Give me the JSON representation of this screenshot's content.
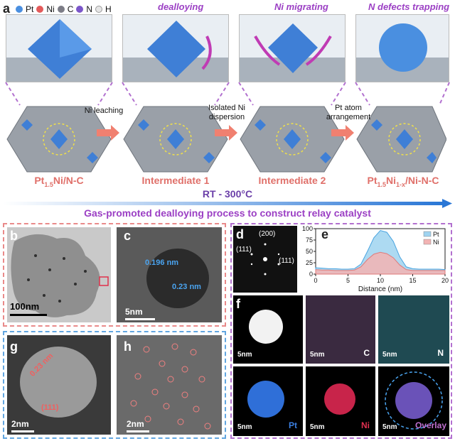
{
  "panel_a": {
    "letter": "a",
    "legend": [
      {
        "label": "Pt",
        "color": "#4a8fe0"
      },
      {
        "label": "Ni",
        "color": "#e35a5a"
      },
      {
        "label": "C",
        "color": "#7c7c86"
      },
      {
        "label": "N",
        "color": "#7b56c9"
      },
      {
        "label": "H",
        "color": "#e6e6e6"
      }
    ],
    "stage_titles": [
      "dealloying",
      "Ni migrating",
      "N defects trapping"
    ],
    "steps": [
      {
        "label_main": "Pt",
        "label_sub": "1.5",
        "label_rest": "Ni/N-C"
      },
      {
        "label_main": "Intermediate 1",
        "label_sub": "",
        "label_rest": ""
      },
      {
        "label_main": "Intermediate 2",
        "label_sub": "",
        "label_rest": ""
      },
      {
        "label_main": "Pt",
        "label_sub": "1.5",
        "label_rest": "Ni",
        "label_sub2": "1-x",
        "label_rest2": "/Ni-N-C"
      }
    ],
    "arrows": [
      "Ni leaching",
      "Isolated Ni\ndispersion",
      "Pt atom\narrangement"
    ],
    "timeline_label": "RT - 300°C",
    "caption": "Gas-promoted dealloying process to construct relay catalyst"
  },
  "panel_b": {
    "letter": "b",
    "scale": "100nm"
  },
  "panel_c": {
    "letter": "c",
    "scale": "5nm",
    "d1": "0.196 nm",
    "d2": "0.23 nm"
  },
  "panel_d": {
    "letter": "d",
    "hkl_top": "(200)",
    "hkl_left": "(111)",
    "hkl_right": "(111)"
  },
  "panel_e": {
    "letter": "e"
  },
  "panel_f": {
    "letter": "f",
    "maps": [
      {
        "scale": "5nm",
        "label": "",
        "label_color": "#ffffff"
      },
      {
        "scale": "5nm",
        "label": "C",
        "label_color": "#ffffff"
      },
      {
        "scale": "5nm",
        "label": "N",
        "label_color": "#ffffff"
      },
      {
        "scale": "5nm",
        "label": "Pt",
        "label_color": "#3b7fe0"
      },
      {
        "scale": "5nm",
        "label": "Ni",
        "label_color": "#e03050"
      },
      {
        "scale": "5nm",
        "label": "Overlay",
        "label_color": "#c070d0"
      }
    ]
  },
  "panel_g": {
    "letter": "g",
    "scale": "2nm",
    "d": "0.23 nm",
    "hkl": "(111)"
  },
  "panel_h": {
    "letter": "h",
    "scale": "2nm"
  },
  "chart_data": {
    "type": "area",
    "xlabel": "Distance (nm)",
    "ylabel": "",
    "xlim": [
      0,
      20
    ],
    "ylim": [
      0,
      100
    ],
    "x_ticks": [
      0,
      5,
      10,
      15,
      20
    ],
    "y_ticks": [
      0,
      25,
      50,
      75,
      100
    ],
    "legend_position": "top-right",
    "x": [
      0,
      1,
      2,
      3,
      4,
      5,
      6,
      7,
      8,
      9,
      10,
      11,
      12,
      13,
      14,
      15,
      16,
      17,
      18,
      19,
      20
    ],
    "series": [
      {
        "name": "Pt",
        "color": "#9fd3f0",
        "values": [
          14,
          13,
          12,
          12,
          11,
          11,
          12,
          22,
          50,
          80,
          96,
          92,
          72,
          38,
          16,
          12,
          11,
          11,
          11,
          11,
          10
        ]
      },
      {
        "name": "Ni",
        "color": "#f3b3b3",
        "values": [
          10,
          9,
          9,
          8,
          8,
          8,
          9,
          16,
          32,
          44,
          48,
          45,
          36,
          20,
          10,
          8,
          8,
          8,
          8,
          8,
          8
        ]
      }
    ]
  }
}
